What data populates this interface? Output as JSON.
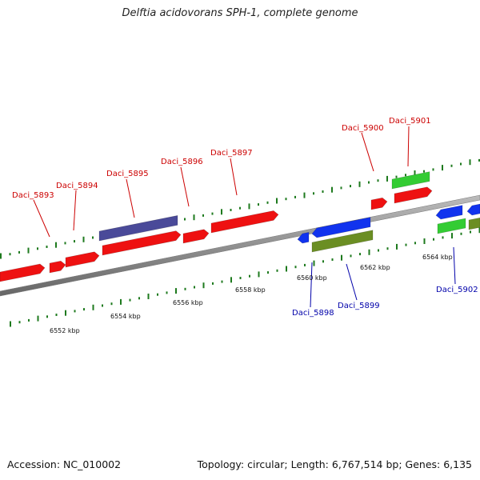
{
  "title": "Delftia acidovorans SPH-1, complete genome",
  "footer": {
    "accession": "Accession: NC_010002",
    "summary": "Topology: circular; Length: 6,767,514 bp; Genes: 6,135"
  },
  "colors": {
    "forward_gene": "#ee1111",
    "reverse_gene": "#1133ee",
    "forward_feature": "#4a4a99",
    "green_feature": "#33cc33",
    "olive_feature": "#6b8e23",
    "backbone": "#888888",
    "dots": "#1e7a1e",
    "label_red": "#cc0000",
    "label_blue": "#0000aa"
  },
  "kbp_labels": [
    "6552 kbp",
    "6554 kbp",
    "6556 kbp",
    "6558 kbp",
    "6560 kbp",
    "6562 kbp",
    "6564 kbp"
  ],
  "gene_labels_top": [
    "Daci_5893",
    "Daci_5894",
    "Daci_5895",
    "Daci_5896",
    "Daci_5897",
    "Daci_5900",
    "Daci_5901"
  ],
  "gene_labels_bottom": [
    "Daci_5898",
    "Daci_5899",
    "Daci_5902"
  ]
}
